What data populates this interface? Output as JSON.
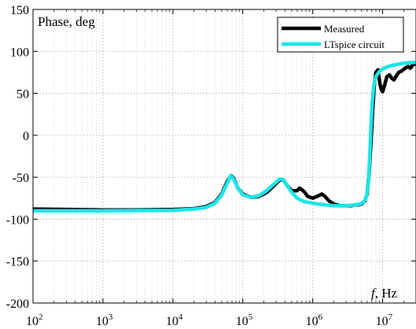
{
  "chart_data": {
    "type": "line",
    "title": "",
    "ylabel": "Phase, deg",
    "xlabel_italic": "f",
    "xlabel_rest": ", Hz",
    "x_scale": "log",
    "xlim": [
      100,
      30000000
    ],
    "ylim": [
      -200,
      150
    ],
    "grid": true,
    "legend_position": "top-right",
    "x_ticks": [
      {
        "value": 100,
        "base": "10",
        "exp": "2"
      },
      {
        "value": 1000,
        "base": "10",
        "exp": "3"
      },
      {
        "value": 10000,
        "base": "10",
        "exp": "4"
      },
      {
        "value": 100000,
        "base": "10",
        "exp": "5"
      },
      {
        "value": 1000000,
        "base": "10",
        "exp": "6"
      },
      {
        "value": 10000000,
        "base": "10",
        "exp": "7"
      }
    ],
    "y_ticks": [
      {
        "value": 150,
        "label": "150"
      },
      {
        "value": 100,
        "label": "100"
      },
      {
        "value": 50,
        "label": "50"
      },
      {
        "value": 0,
        "label": "0"
      },
      {
        "value": -50,
        "label": "-50"
      },
      {
        "value": -100,
        "label": "-100"
      },
      {
        "value": -150,
        "label": "-150"
      },
      {
        "value": -200,
        "label": "-200"
      }
    ],
    "series": [
      {
        "name": "Measured",
        "color": "#000000",
        "points": [
          [
            100,
            -88
          ],
          [
            300,
            -88.5
          ],
          [
            1000,
            -89
          ],
          [
            3000,
            -89
          ],
          [
            10000,
            -88.5
          ],
          [
            20000,
            -87.5
          ],
          [
            30000,
            -85
          ],
          [
            40000,
            -80
          ],
          [
            50000,
            -70
          ],
          [
            60000,
            -55
          ],
          [
            68000,
            -48
          ],
          [
            75000,
            -52
          ],
          [
            85000,
            -63
          ],
          [
            100000,
            -70
          ],
          [
            130000,
            -74
          ],
          [
            170000,
            -73
          ],
          [
            220000,
            -68
          ],
          [
            280000,
            -60
          ],
          [
            340000,
            -53
          ],
          [
            380000,
            -53
          ],
          [
            430000,
            -60
          ],
          [
            500000,
            -66
          ],
          [
            600000,
            -66
          ],
          [
            650000,
            -63
          ],
          [
            750000,
            -67
          ],
          [
            850000,
            -73
          ],
          [
            1000000,
            -75
          ],
          [
            1150000,
            -73
          ],
          [
            1350000,
            -70
          ],
          [
            1500000,
            -73
          ],
          [
            1700000,
            -78
          ],
          [
            2000000,
            -82
          ],
          [
            2500000,
            -84
          ],
          [
            3000000,
            -84
          ],
          [
            3500000,
            -84
          ],
          [
            4000000,
            -83
          ],
          [
            4500000,
            -83
          ],
          [
            5000000,
            -82
          ],
          [
            5600000,
            -78
          ],
          [
            6000000,
            -70
          ],
          [
            6400000,
            -45
          ],
          [
            6800000,
            -10
          ],
          [
            7200000,
            30
          ],
          [
            7600000,
            60
          ],
          [
            8000000,
            75
          ],
          [
            8600000,
            78
          ],
          [
            9000000,
            65
          ],
          [
            9500000,
            55
          ],
          [
            10000000,
            52
          ],
          [
            10700000,
            60
          ],
          [
            11500000,
            70
          ],
          [
            12500000,
            72
          ],
          [
            13500000,
            68
          ],
          [
            14500000,
            66
          ],
          [
            15500000,
            70
          ],
          [
            17000000,
            75
          ],
          [
            19000000,
            77
          ],
          [
            21000000,
            80
          ],
          [
            23000000,
            82
          ],
          [
            25000000,
            80
          ],
          [
            27000000,
            84
          ],
          [
            29000000,
            85
          ],
          [
            30000000,
            85
          ]
        ]
      },
      {
        "name": "LTspice circuit",
        "color": "#1ce6e6",
        "points": [
          [
            100,
            -90
          ],
          [
            1000,
            -90
          ],
          [
            10000,
            -89.5
          ],
          [
            20000,
            -88
          ],
          [
            30000,
            -86
          ],
          [
            40000,
            -81
          ],
          [
            50000,
            -71
          ],
          [
            60000,
            -57
          ],
          [
            67000,
            -48
          ],
          [
            75000,
            -53
          ],
          [
            85000,
            -63
          ],
          [
            100000,
            -71
          ],
          [
            130000,
            -74
          ],
          [
            170000,
            -72
          ],
          [
            220000,
            -66
          ],
          [
            280000,
            -58
          ],
          [
            340000,
            -52
          ],
          [
            380000,
            -53
          ],
          [
            430000,
            -60
          ],
          [
            500000,
            -68
          ],
          [
            600000,
            -75
          ],
          [
            750000,
            -79
          ],
          [
            1000000,
            -81
          ],
          [
            1500000,
            -83
          ],
          [
            2000000,
            -84
          ],
          [
            3000000,
            -84
          ],
          [
            4000000,
            -83
          ],
          [
            4800000,
            -82
          ],
          [
            5300000,
            -80
          ],
          [
            5800000,
            -75
          ],
          [
            6200000,
            -60
          ],
          [
            6500000,
            -30
          ],
          [
            6800000,
            10
          ],
          [
            7100000,
            40
          ],
          [
            7500000,
            60
          ],
          [
            8000000,
            70
          ],
          [
            9000000,
            76
          ],
          [
            10000000,
            79
          ],
          [
            12000000,
            82
          ],
          [
            15000000,
            84
          ],
          [
            20000000,
            86
          ],
          [
            30000000,
            87
          ]
        ]
      }
    ]
  }
}
